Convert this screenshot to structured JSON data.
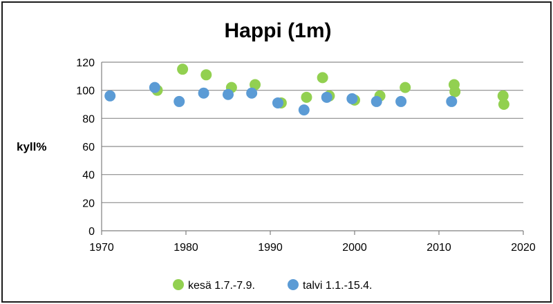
{
  "chart_data": {
    "type": "scatter",
    "title": "Happi (1m)",
    "ylabel": "kyll%",
    "xlabel": "",
    "xlim": [
      1970,
      2020
    ],
    "ylim": [
      0,
      120
    ],
    "x_ticks": [
      "1970",
      "1980",
      "1990",
      "2000",
      "2010",
      "2020"
    ],
    "y_ticks": [
      "0",
      "20",
      "40",
      "60",
      "80",
      "100",
      "120"
    ],
    "grid": "horizontal",
    "legend_position": "bottom",
    "series": [
      {
        "name": "kesä 1.7.-7.9.",
        "color": "#92d050",
        "points": [
          {
            "x": 1976.6,
            "y": 100
          },
          {
            "x": 1979.6,
            "y": 115
          },
          {
            "x": 1982.4,
            "y": 111
          },
          {
            "x": 1985.4,
            "y": 102
          },
          {
            "x": 1988.2,
            "y": 104
          },
          {
            "x": 1991.3,
            "y": 91
          },
          {
            "x": 1994.3,
            "y": 95
          },
          {
            "x": 1996.2,
            "y": 109
          },
          {
            "x": 1997.0,
            "y": 96
          },
          {
            "x": 2000.0,
            "y": 93
          },
          {
            "x": 2003.0,
            "y": 96
          },
          {
            "x": 2006.0,
            "y": 102
          },
          {
            "x": 2011.8,
            "y": 104
          },
          {
            "x": 2011.9,
            "y": 99
          },
          {
            "x": 2017.6,
            "y": 96
          },
          {
            "x": 2017.7,
            "y": 90
          }
        ]
      },
      {
        "name": "talvi 1.1.-15.4.",
        "color": "#5b9bd5",
        "points": [
          {
            "x": 1971.0,
            "y": 96
          },
          {
            "x": 1976.3,
            "y": 102
          },
          {
            "x": 1979.2,
            "y": 92
          },
          {
            "x": 1982.1,
            "y": 98
          },
          {
            "x": 1985.0,
            "y": 97
          },
          {
            "x": 1987.8,
            "y": 98
          },
          {
            "x": 1990.9,
            "y": 91
          },
          {
            "x": 1994.0,
            "y": 86
          },
          {
            "x": 1996.7,
            "y": 95
          },
          {
            "x": 1999.7,
            "y": 94
          },
          {
            "x": 2002.6,
            "y": 92
          },
          {
            "x": 2005.5,
            "y": 92
          },
          {
            "x": 2011.5,
            "y": 92
          }
        ]
      }
    ]
  }
}
